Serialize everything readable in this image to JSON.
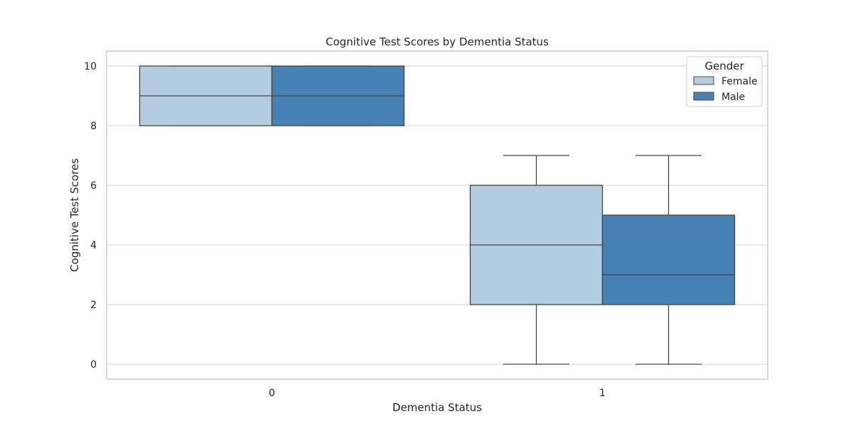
{
  "chart_data": {
    "type": "box",
    "title": "Cognitive Test Scores by Dementia Status",
    "xlabel": "Dementia Status",
    "ylabel": "Cognitive Test Scores",
    "categories": [
      "0",
      "1"
    ],
    "yticks": [
      "0",
      "2",
      "4",
      "6",
      "8",
      "10"
    ],
    "ylim": [
      -0.5,
      10.5
    ],
    "grid": true,
    "legend": {
      "title": "Gender",
      "position": "top-right",
      "entries": [
        "Female",
        "Male"
      ]
    },
    "series": [
      {
        "name": "Female",
        "color": "#b3cde0",
        "boxes": [
          {
            "category": "0",
            "whisker_low": 8,
            "q1": 8,
            "median": 9,
            "q3": 10,
            "whisker_high": 10
          },
          {
            "category": "1",
            "whisker_low": 0,
            "q1": 2,
            "median": 4,
            "q3": 6,
            "whisker_high": 7
          }
        ]
      },
      {
        "name": "Male",
        "color": "#4682b4",
        "boxes": [
          {
            "category": "0",
            "whisker_low": 8,
            "q1": 8,
            "median": 9,
            "q3": 10,
            "whisker_high": 10
          },
          {
            "category": "1",
            "whisker_low": 0,
            "q1": 2,
            "median": 3,
            "q3": 5,
            "whisker_high": 7
          }
        ]
      }
    ]
  }
}
